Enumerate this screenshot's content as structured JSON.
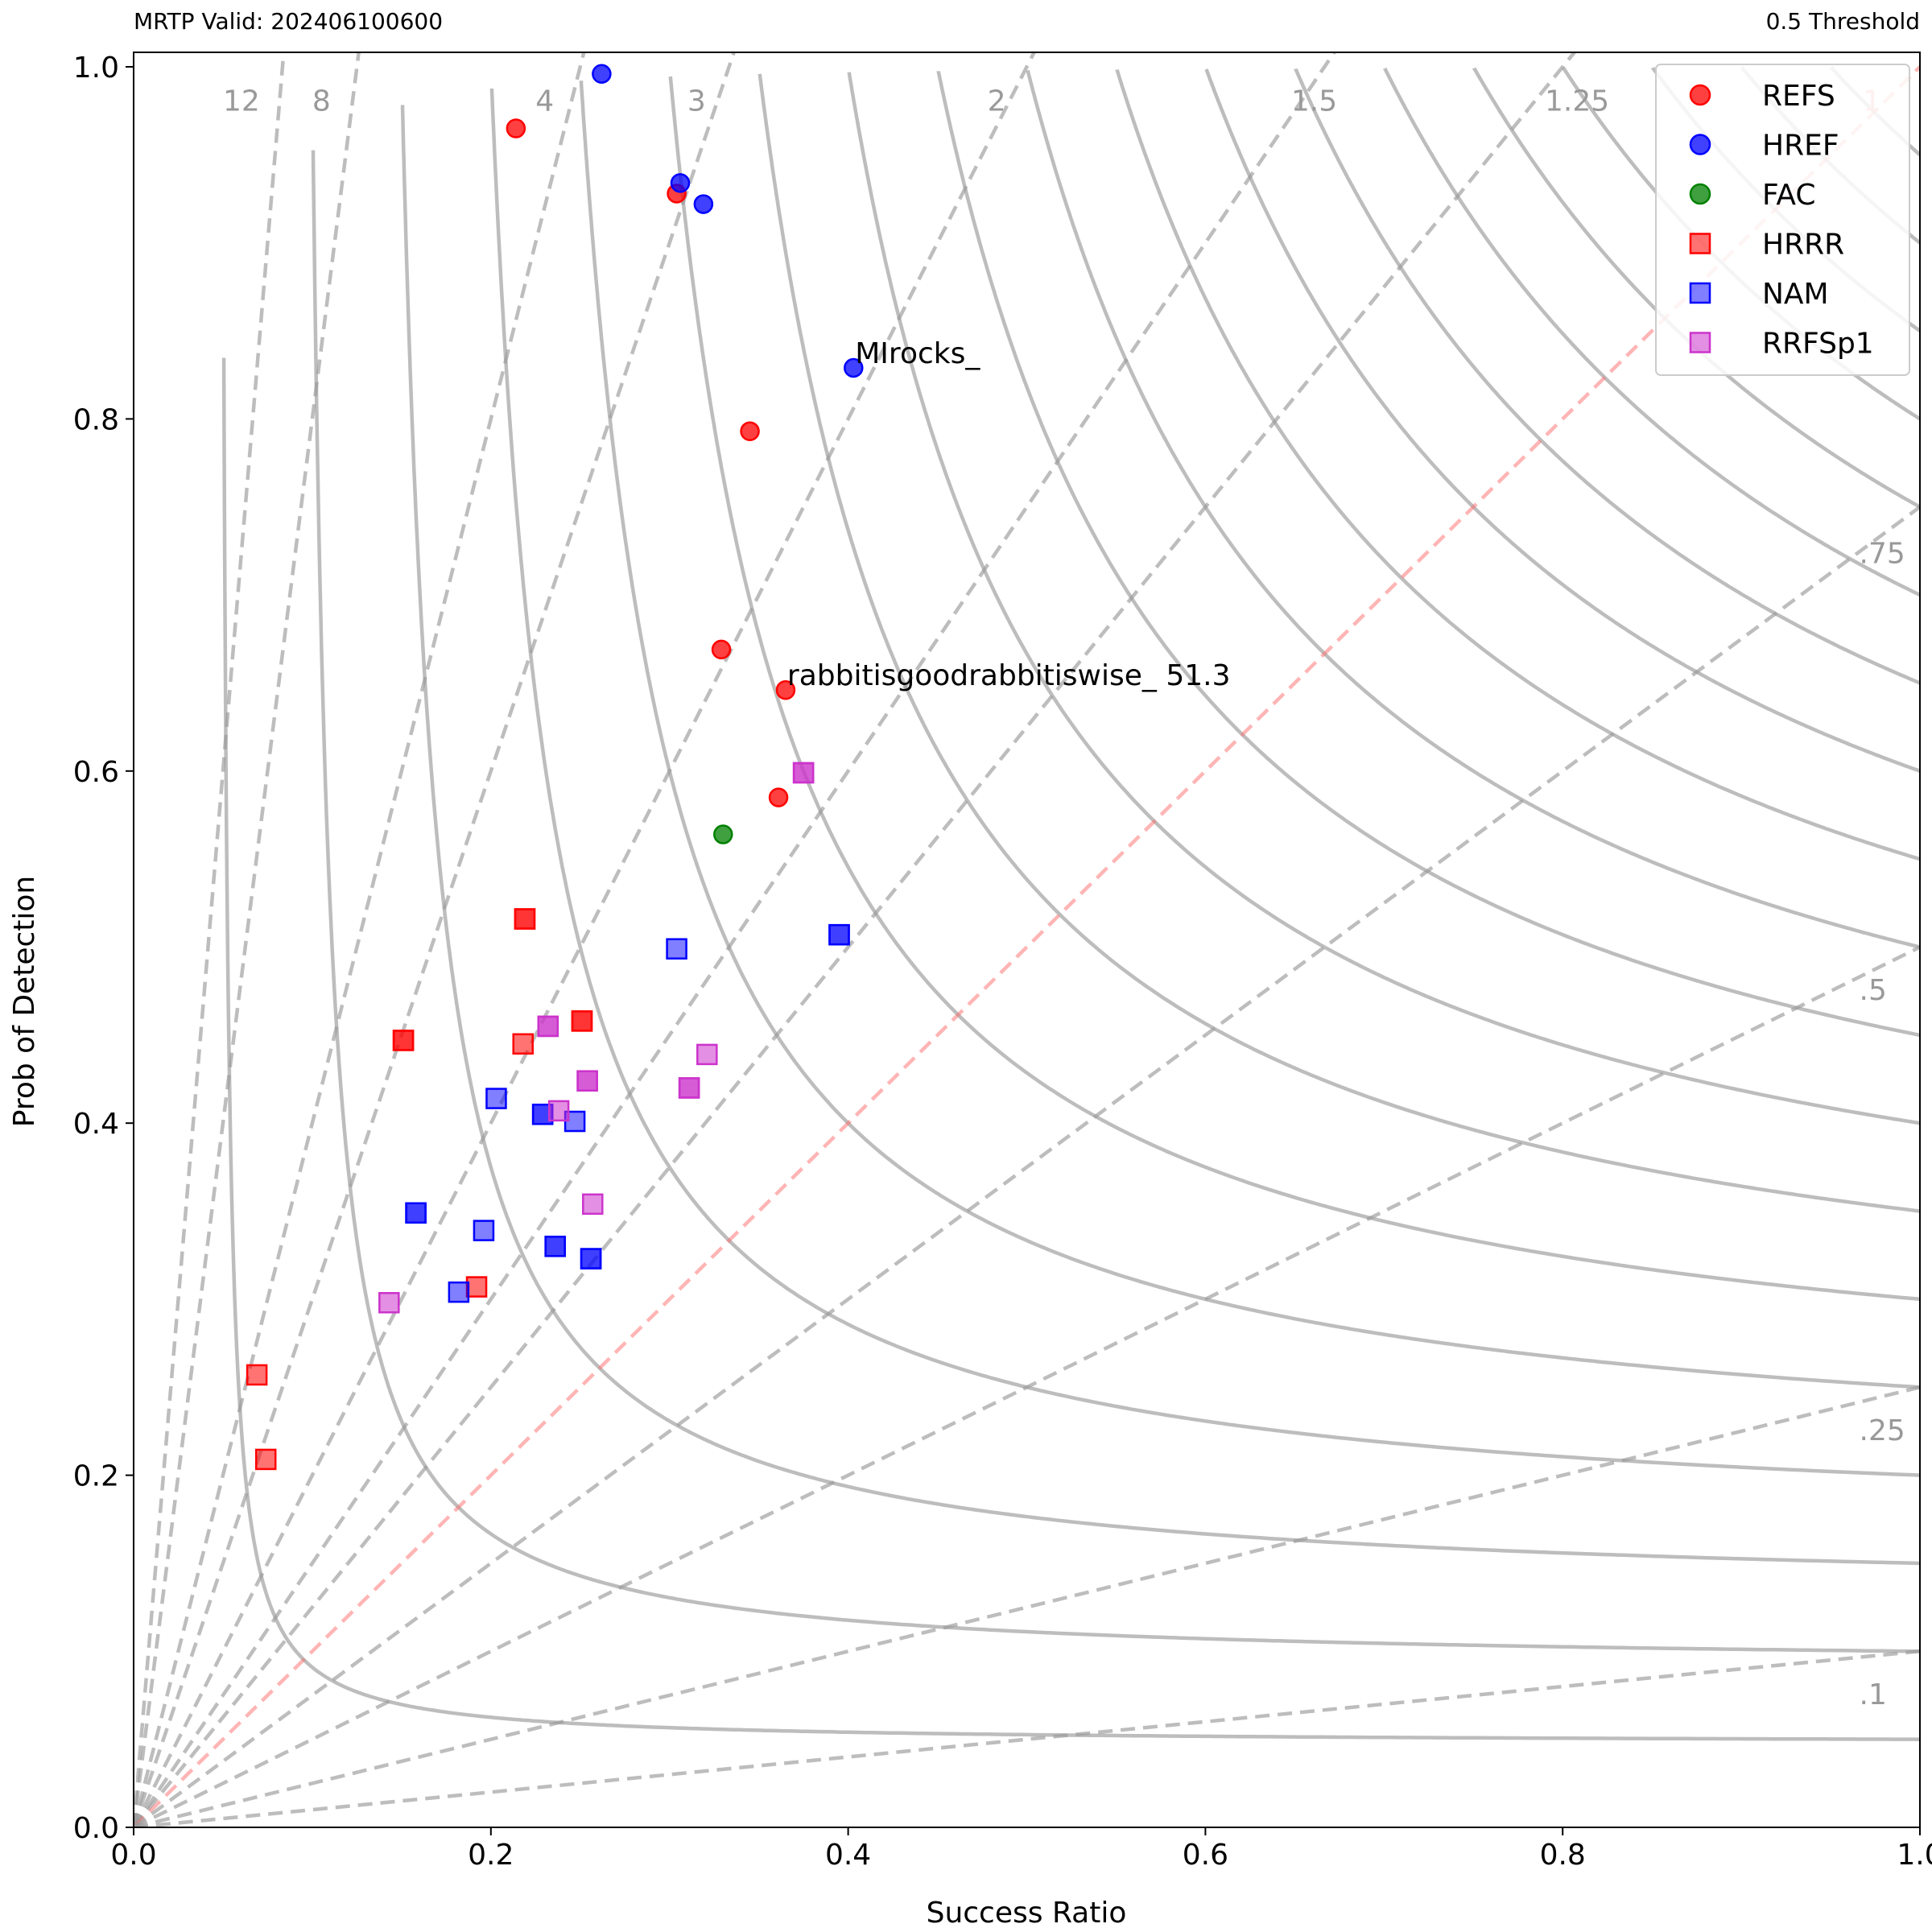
{
  "chart_data": {
    "type": "scatter",
    "subtitle_left": "MRTP Valid: 202406100600",
    "subtitle_right": "0.5 Threshold",
    "xlabel": "Success Ratio",
    "ylabel": "Prob of Detection",
    "xlim": [
      0,
      1
    ],
    "ylim": [
      0,
      1
    ],
    "x_ticks": [
      "0.0",
      "0.2",
      "0.4",
      "0.6",
      "0.8",
      "1.0"
    ],
    "y_ticks": [
      "0.0",
      "0.2",
      "0.4",
      "0.6",
      "0.8",
      "1.0"
    ],
    "bias_lines": [
      {
        "value": 12,
        "label": "12"
      },
      {
        "value": 8,
        "label": "8"
      },
      {
        "value": 4,
        "label": "4"
      },
      {
        "value": 3,
        "label": "3"
      },
      {
        "value": 2,
        "label": "2"
      },
      {
        "value": 1.5,
        "label": "1.5"
      },
      {
        "value": 1.25,
        "label": "1.25"
      },
      {
        "value": 1,
        "label": "1"
      },
      {
        "value": 0.75,
        "label": ".75"
      },
      {
        "value": 0.5,
        "label": ".5"
      },
      {
        "value": 0.25,
        "label": ".25"
      },
      {
        "value": 0.1,
        "label": ".1"
      }
    ],
    "csi_contours": [
      0.05,
      0.1,
      0.15,
      0.2,
      0.25,
      0.3,
      0.35,
      0.4,
      0.45,
      0.5,
      0.55,
      0.6,
      0.65,
      0.7,
      0.75,
      0.8,
      0.85,
      0.9,
      0.95
    ],
    "legend_position": "top-right",
    "series": [
      {
        "name": "REFS",
        "marker": "circle",
        "color": "#ff0000",
        "alpha": 0.75,
        "points": [
          [
            0.214,
            0.965
          ],
          [
            0.304,
            0.928
          ],
          [
            0.345,
            0.793
          ],
          [
            0.329,
            0.669
          ],
          [
            0.365,
            0.646
          ],
          [
            0.361,
            0.585
          ]
        ]
      },
      {
        "name": "HREF",
        "marker": "circle",
        "color": "#0000ff",
        "alpha": 0.75,
        "points": [
          [
            0.262,
            0.996
          ],
          [
            0.306,
            0.934
          ],
          [
            0.319,
            0.922
          ],
          [
            0.403,
            0.829
          ]
        ]
      },
      {
        "name": "FAC",
        "marker": "circle",
        "color": "#008000",
        "alpha": 0.75,
        "points": [
          [
            0.33,
            0.564
          ]
        ]
      },
      {
        "name": "HRRR",
        "marker": "square",
        "color": "#ff0000",
        "alpha": 0.55,
        "points": [
          [
            0.219,
            0.516
          ],
          [
            0.151,
            0.447
          ],
          [
            0.218,
            0.445
          ],
          [
            0.251,
            0.458
          ],
          [
            0.192,
            0.307
          ],
          [
            0.069,
            0.257
          ],
          [
            0.074,
            0.209
          ],
          [
            0.219,
            0.516
          ],
          [
            0.151,
            0.447
          ],
          [
            0.251,
            0.458
          ]
        ]
      },
      {
        "name": "NAM",
        "marker": "square",
        "color": "#0000ff",
        "alpha": 0.5,
        "points": [
          [
            0.304,
            0.499
          ],
          [
            0.203,
            0.414
          ],
          [
            0.247,
            0.401
          ],
          [
            0.196,
            0.339
          ],
          [
            0.182,
            0.304
          ],
          [
            0.395,
            0.507
          ],
          [
            0.229,
            0.405
          ],
          [
            0.158,
            0.349
          ],
          [
            0.236,
            0.33
          ],
          [
            0.256,
            0.323
          ],
          [
            0.395,
            0.507
          ],
          [
            0.229,
            0.405
          ],
          [
            0.158,
            0.349
          ],
          [
            0.236,
            0.33
          ],
          [
            0.256,
            0.323
          ]
        ]
      },
      {
        "name": "RRFSp1",
        "marker": "square",
        "color": "#cc33cc",
        "alpha": 0.55,
        "points": [
          [
            0.375,
            0.599
          ],
          [
            0.232,
            0.455
          ],
          [
            0.254,
            0.424
          ],
          [
            0.311,
            0.42
          ],
          [
            0.321,
            0.439
          ],
          [
            0.238,
            0.407
          ],
          [
            0.257,
            0.354
          ],
          [
            0.143,
            0.298
          ],
          [
            0.375,
            0.599
          ],
          [
            0.232,
            0.455
          ],
          [
            0.254,
            0.424
          ],
          [
            0.311,
            0.42
          ]
        ]
      }
    ],
    "annotations": [
      {
        "text": "MIrocks_",
        "x": 0.403,
        "y": 0.829
      },
      {
        "text": "rabbitisgoodrabbitiswise_ 51.3",
        "x": 0.365,
        "y": 0.646
      }
    ]
  }
}
